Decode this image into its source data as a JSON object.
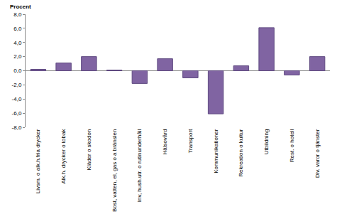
{
  "chart_data": {
    "type": "bar",
    "y_label": "Procent",
    "categories": [
      "Livsm. o alk.h.fria drycker",
      "Alk.h. drycker o tobak",
      "Kläder o skodon",
      "Bost, vatten, el, gas o a bränslen",
      "Inv, hush.utr. o rutinunderhåll",
      "Hälsovård",
      "Transport",
      "Kommunikationer",
      "Rekreation o kultur",
      "Utbildning",
      "Rest. o hotell",
      "Div. varor o tjänster"
    ],
    "values": [
      0.2,
      1.1,
      2.0,
      0.1,
      -1.8,
      1.7,
      -1.0,
      -6.1,
      0.7,
      6.1,
      -0.6,
      2.0
    ],
    "color": "#8064a2",
    "ylim": [
      -8,
      8
    ],
    "yticks": [
      {
        "value": -8,
        "label": "-8,0"
      },
      {
        "value": -6,
        "label": "-6,0"
      },
      {
        "value": -4,
        "label": "-4,0"
      },
      {
        "value": -2,
        "label": "-2,0"
      },
      {
        "value": 0,
        "label": "0,0"
      },
      {
        "value": 2,
        "label": "2,0"
      },
      {
        "value": 4,
        "label": "4,0"
      },
      {
        "value": 6,
        "label": "6,0"
      },
      {
        "value": 8,
        "label": "8,0"
      }
    ],
    "grid": false
  }
}
